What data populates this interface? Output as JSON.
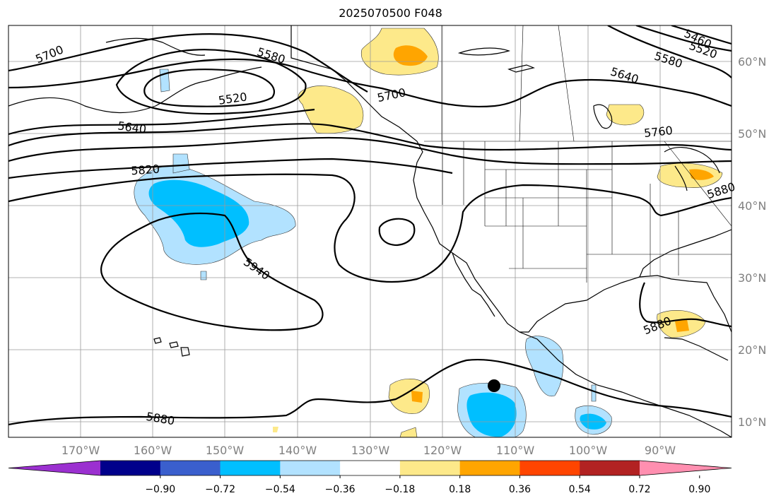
{
  "title": "2025070500 F048",
  "longitude_labels": [
    "170°W",
    "160°W",
    "150°W",
    "140°W",
    "130°W",
    "120°W",
    "110°W",
    "100°W",
    "90°W"
  ],
  "latitude_labels": [
    "60°N",
    "50°N",
    "40°N",
    "30°N",
    "20°N",
    "10°N"
  ],
  "contour_labels": [
    "5700",
    "5580",
    "5520",
    "5640",
    "5700",
    "5640",
    "5580",
    "5520",
    "5460",
    "5760",
    "5820",
    "5940",
    "5880",
    "5880",
    "5880"
  ],
  "colorbar": {
    "tick_labels": [
      "−0.90",
      "−0.72",
      "−0.54",
      "−0.36",
      "−0.18",
      "0.18",
      "0.36",
      "0.54",
      "0.72",
      "0.90"
    ],
    "colors": [
      "#9b30d0",
      "#00008b",
      "#3a5fcd",
      "#00bfff",
      "#b2e2ff",
      "#ffffff",
      "#fde98a",
      "#ffa500",
      "#ff4500",
      "#b22222",
      "#ff8fb0"
    ]
  }
}
